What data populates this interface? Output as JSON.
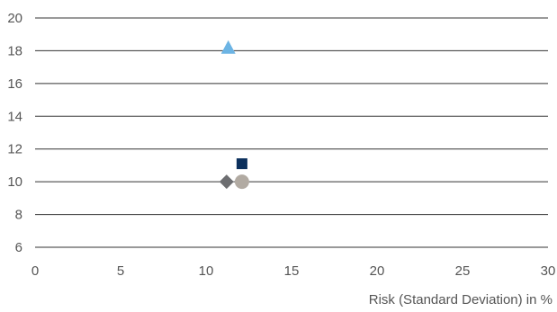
{
  "chart_data": {
    "type": "scatter",
    "title": "",
    "xlabel": "Risk (Standard Deviation) in %",
    "ylabel": "",
    "xlim": [
      0,
      30
    ],
    "ylim": [
      6,
      20
    ],
    "x_ticks": [
      "0",
      "5",
      "10",
      "15",
      "20",
      "25",
      "30"
    ],
    "y_ticks": [
      "6",
      "8",
      "10",
      "12",
      "14",
      "16",
      "18",
      "20"
    ],
    "grid": "horizontal",
    "legend": "none",
    "series": [
      {
        "marker": "triangle",
        "color": "#6cb4e4",
        "points": [
          {
            "x": 11.3,
            "y": 18.2
          }
        ]
      },
      {
        "marker": "square",
        "color": "#0b2f5c",
        "points": [
          {
            "x": 12.1,
            "y": 11.1
          }
        ]
      },
      {
        "marker": "diamond",
        "color": "#6d6e71",
        "points": [
          {
            "x": 11.2,
            "y": 10.0
          }
        ]
      },
      {
        "marker": "circle",
        "color": "#b1aaa2",
        "points": [
          {
            "x": 12.1,
            "y": 10.0
          }
        ]
      }
    ]
  }
}
